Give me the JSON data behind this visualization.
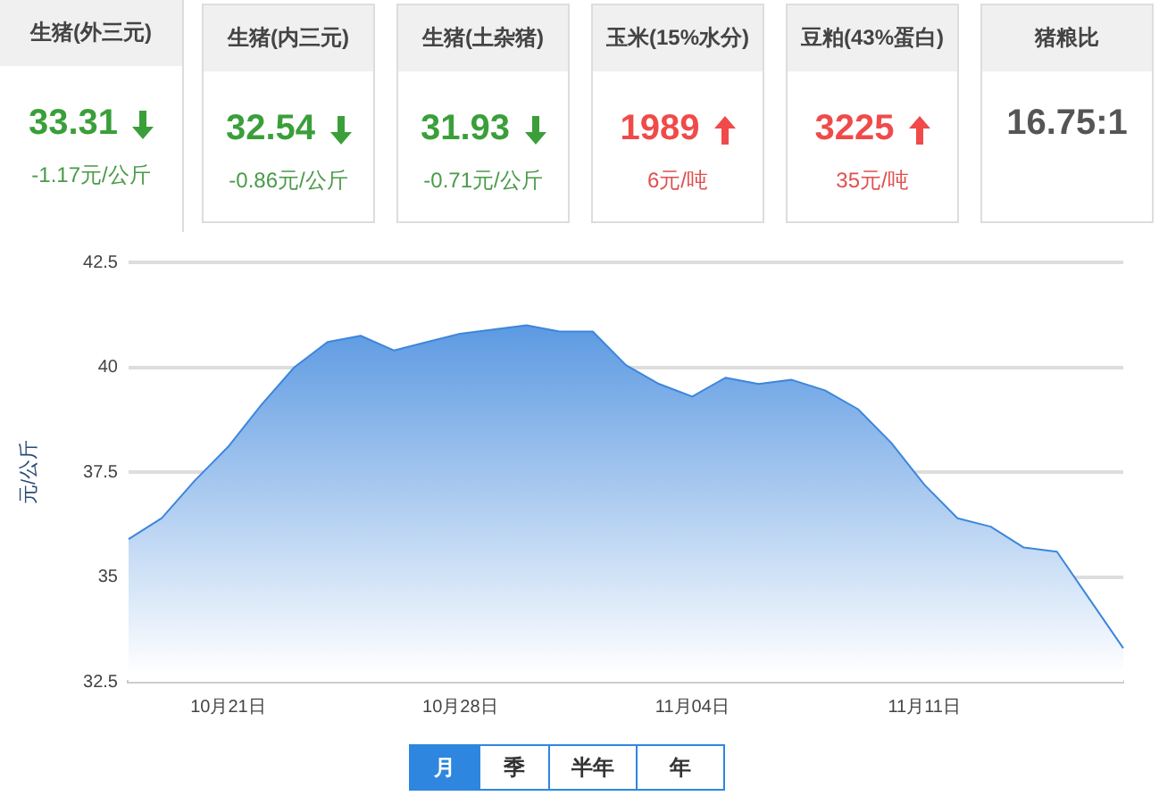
{
  "chart_data": [
    {
      "type": "other",
      "annotations": [
        "生猪(外三元)",
        "生猪(内三元)",
        "生猪(土杂猪)",
        "玉米(15%水分)",
        "豆粕(43%蛋白)",
        "猪粮比",
        "33.31",
        "32.54",
        "31.93",
        "1989",
        "3225",
        "16.75:1",
        "-1.17元/公斤",
        "-0.86元/公斤",
        "-0.71元/公斤",
        "6元/吨",
        "35元/吨",
        "月",
        "季",
        "半年",
        "年"
      ]
    },
    {
      "type": "area",
      "ylabel": "元/公斤",
      "categories": [
        null,
        null,
        null,
        "10月21日",
        null,
        null,
        null,
        null,
        null,
        null,
        "10月28日",
        null,
        null,
        null,
        null,
        null,
        null,
        "11月04日",
        null,
        null,
        null,
        null,
        null,
        null,
        "11月11日",
        null,
        null,
        null,
        null,
        null,
        null
      ],
      "series": [
        {
          "color": "#3d86dc",
          "values": [
            35.9,
            36.4,
            37.3,
            38.1,
            39.1,
            40.0,
            40.6,
            40.75,
            40.4,
            40.6,
            40.8,
            40.9,
            41.0,
            40.85,
            40.85,
            40.05,
            39.6,
            39.3,
            39.75,
            39.6,
            39.7,
            39.45,
            39.0,
            38.2,
            37.2,
            36.4,
            36.2,
            35.7,
            35.6,
            34.45,
            33.3
          ]
        }
      ],
      "ylim": [
        32.5,
        42.5
      ],
      "yticks": [
        32.5,
        35,
        37.5,
        40,
        42.5
      ],
      "grid": "y",
      "legend": false,
      "marker": "none"
    }
  ]
}
